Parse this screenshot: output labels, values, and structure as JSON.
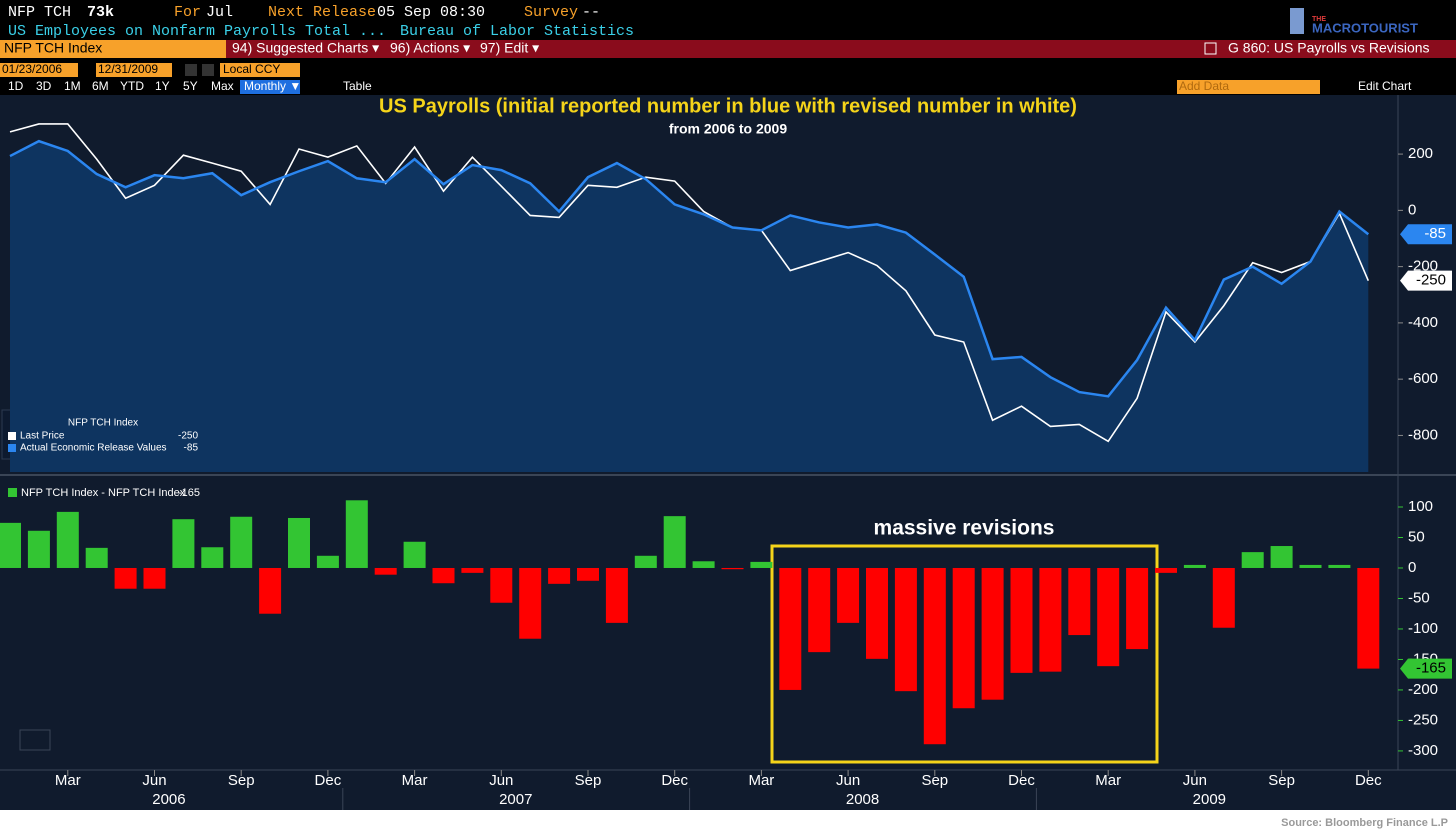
{
  "header": {
    "ticker": "NFP TCH",
    "last": "73k",
    "for_label": "For",
    "for_value": "Jul",
    "next_label": "Next Release",
    "next_value": "05 Sep 08:30",
    "survey_label": "Survey",
    "survey_value": "--",
    "description": "US Employees on Nonfarm Payrolls Total ...",
    "source_agency": "Bureau of Labor Statistics",
    "logo_small": "THE",
    "logo_main": "MACROTOURIST"
  },
  "toolbar": {
    "security": "NFP TCH Index",
    "menus": [
      "94) Suggested Charts ▾",
      "96) Actions ▾",
      "97) Edit ▾"
    ],
    "chart_name": "G 860: US Payrolls vs Revisions",
    "start_date": "01/23/2006",
    "end_date": "12/31/2009",
    "currency": "Local CCY",
    "periods": [
      "1D",
      "3D",
      "1M",
      "6M",
      "YTD",
      "1Y",
      "5Y",
      "Max"
    ],
    "frequency": "Monthly ▼",
    "table": "Table",
    "add_data": "Add Data",
    "edit_chart": "Edit Chart"
  },
  "source": "Source: Bloomberg Finance L.P",
  "chart_data": [
    {
      "type": "line",
      "title": "US Payrolls (initial reported number in blue with revised number in white)",
      "subtitle": "from 2006 to 2009",
      "legend_title": "NFP TCH Index",
      "legend": "bottom-left",
      "fill": "#0e3460",
      "series": [
        {
          "name": "Last Price",
          "color": "#ffffff",
          "values": [
            279,
            307,
            307,
            182,
            43,
            89,
            196,
            168,
            139,
            21,
            218,
            189,
            229,
            96,
            225,
            68,
            189,
            86,
            -18,
            -25,
            89,
            82,
            118,
            104,
            -4,
            -61,
            -71,
            -214,
            -182,
            -150,
            -196,
            -286,
            -443,
            -468,
            -746,
            -696,
            -768,
            -761,
            -821,
            -668,
            -361,
            -468,
            -339,
            -186,
            -221,
            -182,
            -11,
            -250
          ]
        },
        {
          "name": "Actual Economic Release Values",
          "color": "#2b86f0",
          "values": [
            193,
            246,
            211,
            129,
            82,
            125,
            114,
            132,
            54,
            100,
            139,
            175,
            114,
            100,
            182,
            93,
            161,
            143,
            96,
            -4,
            118,
            168,
            111,
            21,
            -14,
            -61,
            -71,
            -18,
            -43,
            -61,
            -50,
            -79,
            -157,
            -236,
            -529,
            -521,
            -593,
            -646,
            -661,
            -532,
            -346,
            -461,
            -246,
            -200,
            -261,
            -182,
            -4,
            -85
          ]
        }
      ],
      "ylim": [
        -930,
        410
      ],
      "yticks": [
        200,
        0,
        -200,
        -400,
        -600,
        -800
      ]
    },
    {
      "type": "bar",
      "legend": "top-left",
      "annotation": "massive revisions",
      "series": [
        {
          "name": "NFP TCH Index - NFP TCH Index",
          "color": "#33c533",
          "negative_color": "#ff0000",
          "values": [
            74,
            61,
            92,
            33,
            -34,
            -34,
            80,
            34,
            84,
            -75,
            82,
            20,
            111,
            -11,
            43,
            -25,
            -8,
            -57,
            -116,
            -26,
            -21,
            -90,
            20,
            85,
            11,
            -2,
            10,
            -200,
            -138,
            -90,
            -149,
            -202,
            -289,
            -230,
            -216,
            -172,
            -170,
            -110,
            -161,
            -133,
            -8,
            5,
            -98,
            26,
            36,
            5,
            5,
            -165
          ]
        }
      ],
      "categories": [
        null,
        null,
        "Mar",
        null,
        null,
        "Jun",
        null,
        null,
        "Sep",
        null,
        null,
        "Dec",
        null,
        null,
        "Mar",
        null,
        null,
        "Jun",
        null,
        null,
        "Sep",
        null,
        null,
        "Dec",
        null,
        null,
        "Mar",
        null,
        null,
        "Jun",
        null,
        null,
        "Sep",
        null,
        null,
        "Dec",
        null,
        null,
        "Mar",
        null,
        null,
        "Jun",
        null,
        null,
        "Sep",
        null,
        null,
        "Dec"
      ],
      "years": [
        "2006",
        "2007",
        "2008",
        "2009"
      ],
      "ylim": [
        -328,
        141
      ],
      "yticks": [
        100,
        50,
        0,
        -50,
        -100,
        -150,
        -200,
        -250,
        -300
      ]
    }
  ]
}
